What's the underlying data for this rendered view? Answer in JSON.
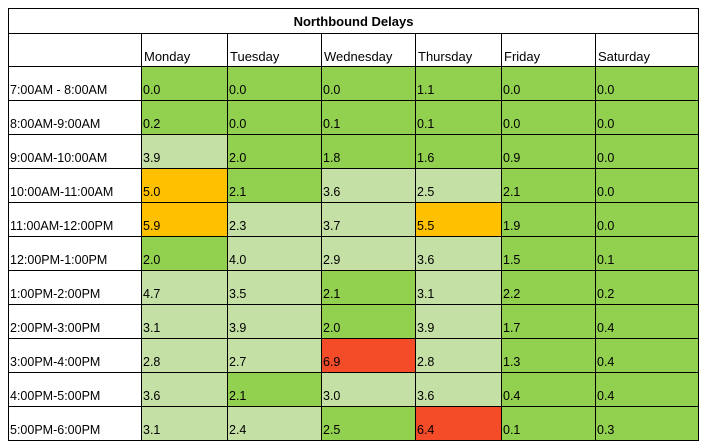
{
  "title": "Northbound Delays",
  "colors": {
    "dark_green": "#92d050",
    "light_green": "#c5e0a5",
    "orange": "#ffc000",
    "red": "#f44b29"
  },
  "days": [
    "Monday",
    "Tuesday",
    "Wednesday",
    "Thursday",
    "Friday",
    "Saturday"
  ],
  "rows": [
    {
      "time": "7:00AM - 8:00AM",
      "values": [
        "0.0",
        "0.0",
        "0.0",
        "1.1",
        "0.0",
        "0.0"
      ],
      "colors": [
        "dark_green",
        "dark_green",
        "dark_green",
        "dark_green",
        "dark_green",
        "dark_green"
      ]
    },
    {
      "time": "8:00AM-9:00AM",
      "values": [
        "0.2",
        "0.0",
        "0.1",
        "0.1",
        "0.0",
        "0.0"
      ],
      "colors": [
        "dark_green",
        "dark_green",
        "dark_green",
        "dark_green",
        "dark_green",
        "dark_green"
      ]
    },
    {
      "time": "9:00AM-10:00AM",
      "values": [
        "3.9",
        "2.0",
        "1.8",
        "1.6",
        "0.9",
        "0.0"
      ],
      "colors": [
        "light_green",
        "dark_green",
        "dark_green",
        "dark_green",
        "dark_green",
        "dark_green"
      ]
    },
    {
      "time": "10:00AM-11:00AM",
      "values": [
        "5.0",
        "2.1",
        "3.6",
        "2.5",
        "2.1",
        "0.0"
      ],
      "colors": [
        "orange",
        "dark_green",
        "light_green",
        "light_green",
        "dark_green",
        "dark_green"
      ]
    },
    {
      "time": "11:00AM-12:00PM",
      "values": [
        "5.9",
        "2.3",
        "3.7",
        "5.5",
        "1.9",
        "0.0"
      ],
      "colors": [
        "orange",
        "light_green",
        "light_green",
        "orange",
        "dark_green",
        "dark_green"
      ]
    },
    {
      "time": "12:00PM-1:00PM",
      "values": [
        "2.0",
        "4.0",
        "2.9",
        "3.6",
        "1.5",
        "0.1"
      ],
      "colors": [
        "dark_green",
        "light_green",
        "light_green",
        "light_green",
        "dark_green",
        "dark_green"
      ]
    },
    {
      "time": "1:00PM-2:00PM",
      "values": [
        "4.7",
        "3.5",
        "2.1",
        "3.1",
        "2.2",
        "0.2"
      ],
      "colors": [
        "light_green",
        "light_green",
        "dark_green",
        "light_green",
        "dark_green",
        "dark_green"
      ]
    },
    {
      "time": "2:00PM-3:00PM",
      "values": [
        "3.1",
        "3.9",
        "2.0",
        "3.9",
        "1.7",
        "0.4"
      ],
      "colors": [
        "light_green",
        "light_green",
        "dark_green",
        "light_green",
        "dark_green",
        "dark_green"
      ]
    },
    {
      "time": "3:00PM-4:00PM",
      "values": [
        "2.8",
        "2.7",
        "6.9",
        "2.8",
        "1.3",
        "0.4"
      ],
      "colors": [
        "light_green",
        "light_green",
        "red",
        "light_green",
        "dark_green",
        "dark_green"
      ]
    },
    {
      "time": "4:00PM-5:00PM",
      "values": [
        "3.6",
        "2.1",
        "3.0",
        "3.6",
        "0.4",
        "0.4"
      ],
      "colors": [
        "light_green",
        "dark_green",
        "light_green",
        "light_green",
        "dark_green",
        "dark_green"
      ]
    },
    {
      "time": "5:00PM-6:00PM",
      "values": [
        "3.1",
        "2.4",
        "2.5",
        "6.4",
        "0.1",
        "0.3"
      ],
      "colors": [
        "light_green",
        "light_green",
        "dark_green",
        "red",
        "dark_green",
        "dark_green"
      ]
    }
  ]
}
